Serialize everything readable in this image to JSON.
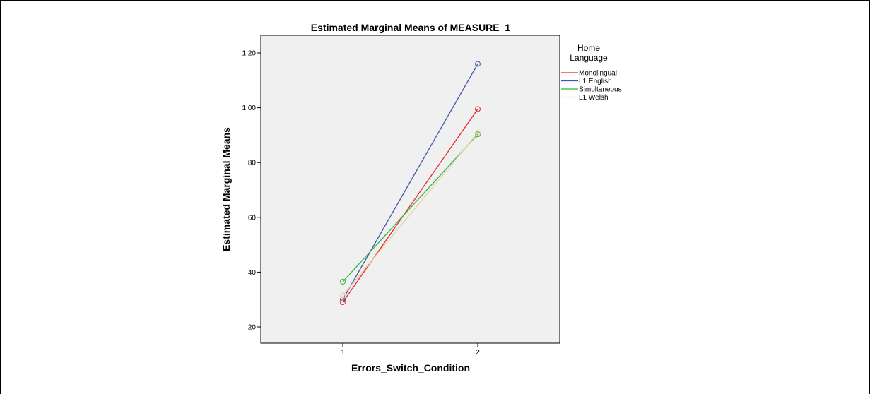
{
  "chart_data": {
    "type": "line",
    "title": "Estimated Marginal Means of MEASURE_1",
    "xlabel": "Errors_Switch_Condition",
    "ylabel": "Estimated Marginal Means",
    "categories": [
      "1",
      "2"
    ],
    "ylim": [
      0.15,
      1.25
    ],
    "yticks": [
      0.2,
      0.4,
      0.6,
      0.8,
      1.0,
      1.2
    ],
    "ytick_labels": [
      ".20",
      ".40",
      ".60",
      ".80",
      "1.00",
      "1.20"
    ],
    "grid": false,
    "legend_position": "right",
    "legend_title": "Home Language",
    "series": [
      {
        "name": "Monolingual",
        "values": [
          0.29,
          0.995
        ],
        "color": "#e8262b"
      },
      {
        "name": "L1 English",
        "values": [
          0.3,
          1.16
        ],
        "color": "#3e55a8"
      },
      {
        "name": "Simultaneous",
        "values": [
          0.365,
          0.903
        ],
        "color": "#2db540"
      },
      {
        "name": "L1 Welsh",
        "values": [
          0.315,
          0.908
        ],
        "color": "#e7d09c"
      }
    ]
  },
  "colors": {
    "plot_background": "#f0f0f0",
    "frame": "#000000"
  }
}
